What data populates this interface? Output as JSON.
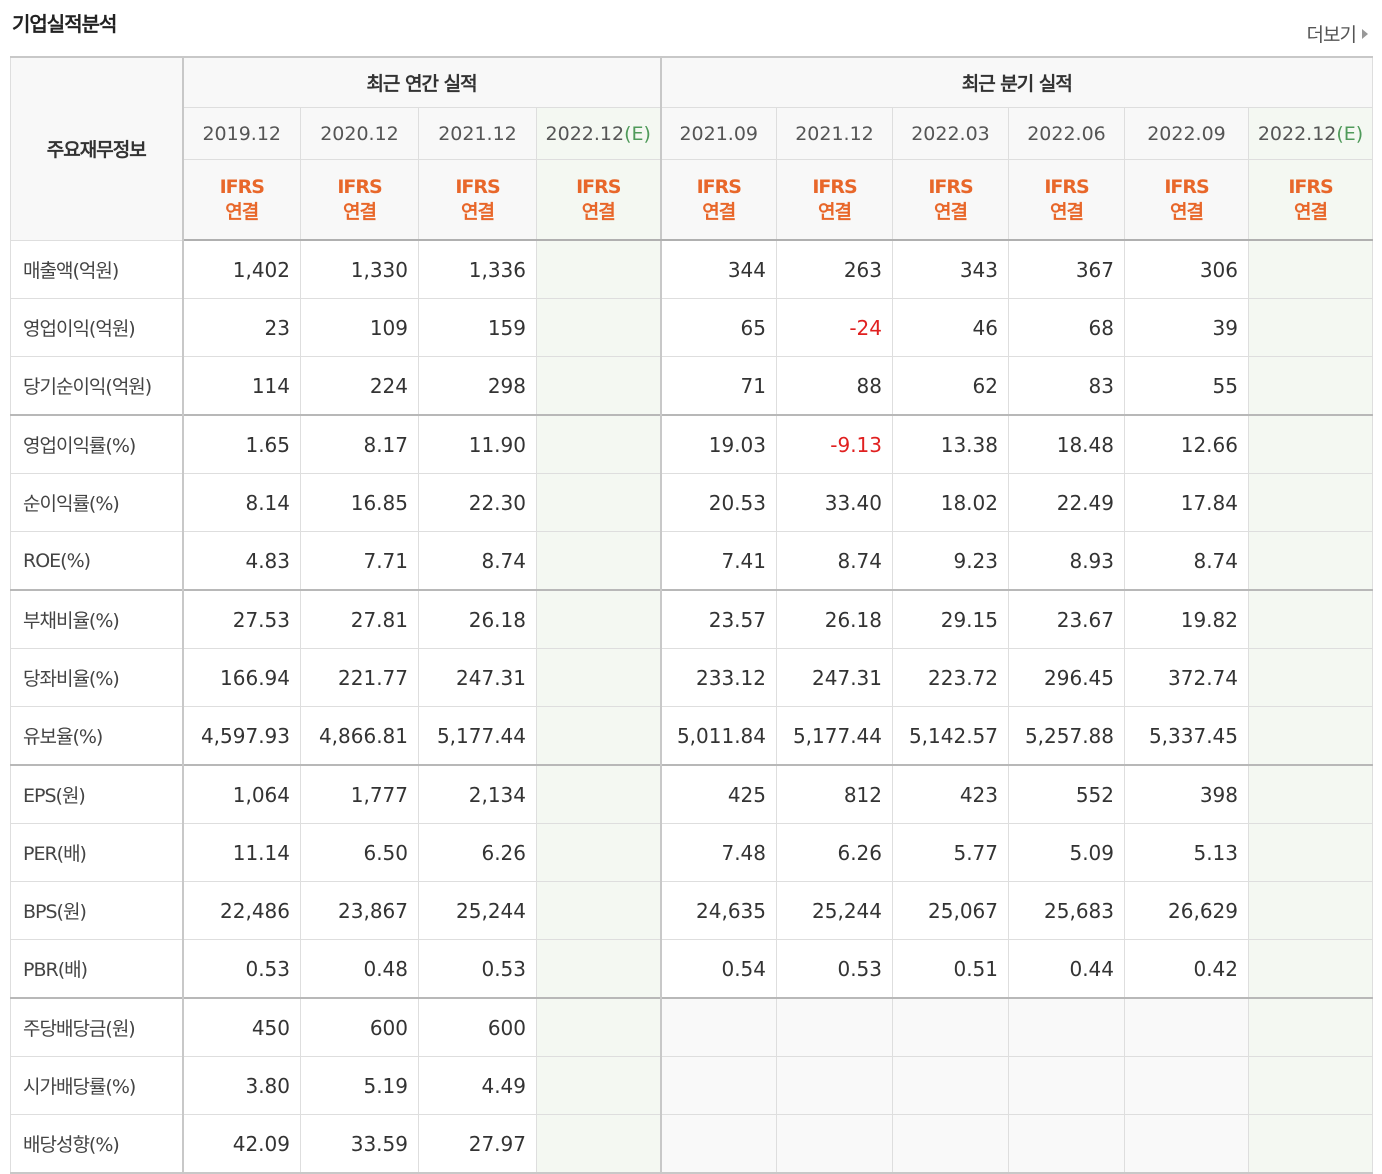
{
  "header": {
    "title": "기업실적분석",
    "more": "더보기"
  },
  "table": {
    "corner": "주요재무정보",
    "sections": [
      {
        "title": "최근 연간 실적",
        "columns": [
          {
            "period": "2019.12",
            "accounting": "IFRS",
            "scope": "연결"
          },
          {
            "period": "2020.12",
            "accounting": "IFRS",
            "scope": "연결"
          },
          {
            "period": "2021.12",
            "accounting": "IFRS",
            "scope": "연결"
          },
          {
            "period": "2022.12",
            "suffix": "(E)",
            "accounting": "IFRS",
            "scope": "연결"
          }
        ]
      },
      {
        "title": "최근 분기 실적",
        "columns": [
          {
            "period": "2021.09",
            "accounting": "IFRS",
            "scope": "연결"
          },
          {
            "period": "2021.12",
            "accounting": "IFRS",
            "scope": "연결"
          },
          {
            "period": "2022.03",
            "accounting": "IFRS",
            "scope": "연결"
          },
          {
            "period": "2022.06",
            "accounting": "IFRS",
            "scope": "연결"
          },
          {
            "period": "2022.09",
            "accounting": "IFRS",
            "scope": "연결"
          },
          {
            "period": "2022.12",
            "suffix": "(E)",
            "accounting": "IFRS",
            "scope": "연결"
          }
        ]
      }
    ],
    "groups": [
      {
        "rows": [
          {
            "label": "매출액(억원)",
            "values": [
              "1,402",
              "1,330",
              "1,336",
              null,
              "344",
              "263",
              "343",
              "367",
              "306",
              null
            ]
          },
          {
            "label": "영업이익(억원)",
            "values": [
              "23",
              "109",
              "159",
              null,
              "65",
              "-24",
              "46",
              "68",
              "39",
              null
            ]
          },
          {
            "label": "당기순이익(억원)",
            "values": [
              "114",
              "224",
              "298",
              null,
              "71",
              "88",
              "62",
              "83",
              "55",
              null
            ]
          }
        ]
      },
      {
        "rows": [
          {
            "label": "영업이익률(%)",
            "values": [
              "1.65",
              "8.17",
              "11.90",
              null,
              "19.03",
              "-9.13",
              "13.38",
              "18.48",
              "12.66",
              null
            ]
          },
          {
            "label": "순이익률(%)",
            "values": [
              "8.14",
              "16.85",
              "22.30",
              null,
              "20.53",
              "33.40",
              "18.02",
              "22.49",
              "17.84",
              null
            ]
          },
          {
            "label": "ROE(%)",
            "values": [
              "4.83",
              "7.71",
              "8.74",
              null,
              "7.41",
              "8.74",
              "9.23",
              "8.93",
              "8.74",
              null
            ]
          }
        ]
      },
      {
        "rows": [
          {
            "label": "부채비율(%)",
            "values": [
              "27.53",
              "27.81",
              "26.18",
              null,
              "23.57",
              "26.18",
              "29.15",
              "23.67",
              "19.82",
              null
            ]
          },
          {
            "label": "당좌비율(%)",
            "values": [
              "166.94",
              "221.77",
              "247.31",
              null,
              "233.12",
              "247.31",
              "223.72",
              "296.45",
              "372.74",
              null
            ]
          },
          {
            "label": "유보율(%)",
            "values": [
              "4,597.93",
              "4,866.81",
              "5,177.44",
              null,
              "5,011.84",
              "5,177.44",
              "5,142.57",
              "5,257.88",
              "5,337.45",
              null
            ]
          }
        ]
      },
      {
        "rows": [
          {
            "label": "EPS(원)",
            "values": [
              "1,064",
              "1,777",
              "2,134",
              null,
              "425",
              "812",
              "423",
              "552",
              "398",
              null
            ]
          },
          {
            "label": "PER(배)",
            "values": [
              "11.14",
              "6.50",
              "6.26",
              null,
              "7.48",
              "6.26",
              "5.77",
              "5.09",
              "5.13",
              null
            ]
          },
          {
            "label": "BPS(원)",
            "values": [
              "22,486",
              "23,867",
              "25,244",
              null,
              "24,635",
              "25,244",
              "25,067",
              "25,683",
              "26,629",
              null
            ]
          },
          {
            "label": "PBR(배)",
            "values": [
              "0.53",
              "0.48",
              "0.53",
              null,
              "0.54",
              "0.53",
              "0.51",
              "0.44",
              "0.42",
              null
            ]
          }
        ]
      },
      {
        "rows": [
          {
            "label": "주당배당금(원)",
            "values": [
              "450",
              "600",
              "600",
              null,
              null,
              null,
              null,
              null,
              null,
              null
            ]
          },
          {
            "label": "시가배당률(%)",
            "values": [
              "3.80",
              "5.19",
              "4.49",
              null,
              null,
              null,
              null,
              null,
              null,
              null
            ]
          },
          {
            "label": "배당성향(%)",
            "values": [
              "42.09",
              "33.59",
              "27.97",
              null,
              null,
              null,
              null,
              null,
              null,
              null
            ]
          }
        ]
      }
    ]
  }
}
